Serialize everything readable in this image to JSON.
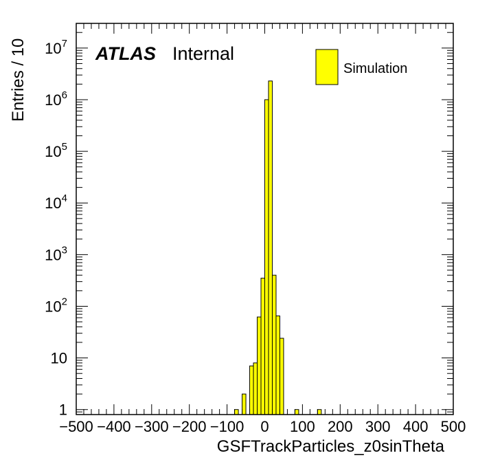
{
  "chart_data": {
    "type": "bar",
    "title": "",
    "xlabel": "GSFTrackParticles_z0sinTheta",
    "ylabel": "Entries / 10",
    "xlim": [
      -500,
      500
    ],
    "ylim": [
      0.8,
      30000000
    ],
    "log_y": true,
    "bin_width": 10,
    "x_ticks": [
      -500,
      -400,
      -300,
      -200,
      -100,
      0,
      100,
      200,
      300,
      400,
      500
    ],
    "x_tick_labels": [
      "−500",
      "−400",
      "−300",
      "−200",
      "−100",
      "0",
      "100",
      "200",
      "300",
      "400",
      "500"
    ],
    "y_ticks": [
      {
        "value": 1,
        "base": "1",
        "exp": ""
      },
      {
        "value": 10,
        "base": "10",
        "exp": ""
      },
      {
        "value": 100,
        "base": "10",
        "exp": "2"
      },
      {
        "value": 1000,
        "base": "10",
        "exp": "3"
      },
      {
        "value": 10000,
        "base": "10",
        "exp": "4"
      },
      {
        "value": 100000,
        "base": "10",
        "exp": "5"
      },
      {
        "value": 1000000,
        "base": "10",
        "exp": "6"
      },
      {
        "value": 10000000,
        "base": "10",
        "exp": "7"
      }
    ],
    "fill_color": "#ffff00",
    "line_color": "#000000",
    "series": [
      {
        "name": "Simulation",
        "bins": [
          {
            "x_low": -80,
            "x_high": -70,
            "value": 1
          },
          {
            "x_low": -60,
            "x_high": -50,
            "value": 2
          },
          {
            "x_low": -40,
            "x_high": -30,
            "value": 7
          },
          {
            "x_low": -30,
            "x_high": -20,
            "value": 8
          },
          {
            "x_low": -20,
            "x_high": -10,
            "value": 62
          },
          {
            "x_low": -10,
            "x_high": 0,
            "value": 350
          },
          {
            "x_low": 0,
            "x_high": 10,
            "value": 1000000
          },
          {
            "x_low": 10,
            "x_high": 20,
            "value": 2300000
          },
          {
            "x_low": 20,
            "x_high": 30,
            "value": 400
          },
          {
            "x_low": 30,
            "x_high": 40,
            "value": 65
          },
          {
            "x_low": 40,
            "x_high": 50,
            "value": 24
          },
          {
            "x_low": 80,
            "x_high": 90,
            "value": 1
          },
          {
            "x_low": 140,
            "x_high": 150,
            "value": 1
          }
        ]
      }
    ],
    "legend_position": "top-right"
  },
  "atlas_label": {
    "bold": "ATLAS",
    "text": "Internal"
  }
}
